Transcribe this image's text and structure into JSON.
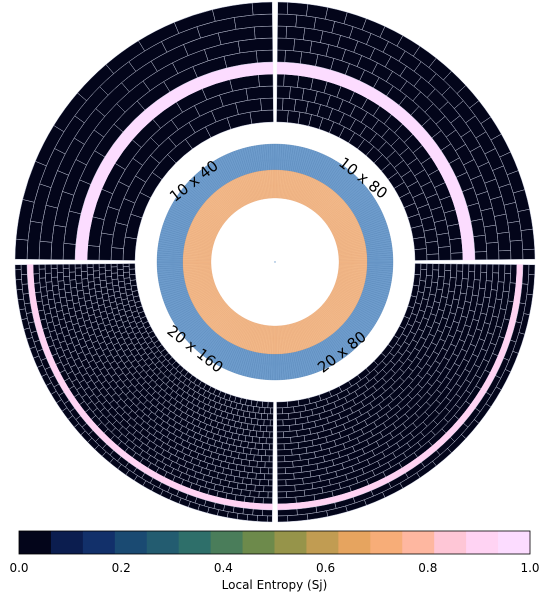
{
  "chart_data": {
    "type": "polar-heatmap",
    "title": "",
    "panels": [
      {
        "label": "10 x 40",
        "quadrant": "top-left",
        "sectors": 40,
        "rings": 10,
        "high_ring_index": 4,
        "high_ring_value": 0.98,
        "background_value": 0.0
      },
      {
        "label": "10 x 80",
        "quadrant": "top-right",
        "sectors": 80,
        "rings": 10,
        "high_ring_index": 4,
        "high_ring_value": 0.98,
        "background_value": 0.0
      },
      {
        "label": "20 x 160",
        "quadrant": "bottom-left",
        "sectors": 160,
        "rings": 20,
        "high_ring_index": 17,
        "high_ring_value": 0.9,
        "background_value": 0.0
      },
      {
        "label": "20 x 80",
        "quadrant": "bottom-right",
        "sectors": 80,
        "rings": 20,
        "high_ring_index": 17,
        "high_ring_value": 0.9,
        "background_value": 0.0
      }
    ],
    "inner_ring": {
      "outer_band_value": 0.05,
      "inner_band_value": 0.78,
      "sectors": 320
    },
    "colorbar": {
      "label": "Local Entropy (Sj)",
      "range": [
        0.0,
        1.0
      ],
      "ticks": [
        "0.0",
        "0.2",
        "0.4",
        "0.6",
        "0.8",
        "1.0"
      ],
      "colors": [
        "#03051a",
        "#0b1d4f",
        "#12306a",
        "#1a4a72",
        "#235c70",
        "#2e6f6a",
        "#4a7d5a",
        "#6d8a4b",
        "#96944a",
        "#c19c52",
        "#e6a45f",
        "#f7ad78",
        "#feb7a0",
        "#fec6d6",
        "#ffd3f3",
        "#fcdcff"
      ]
    }
  }
}
